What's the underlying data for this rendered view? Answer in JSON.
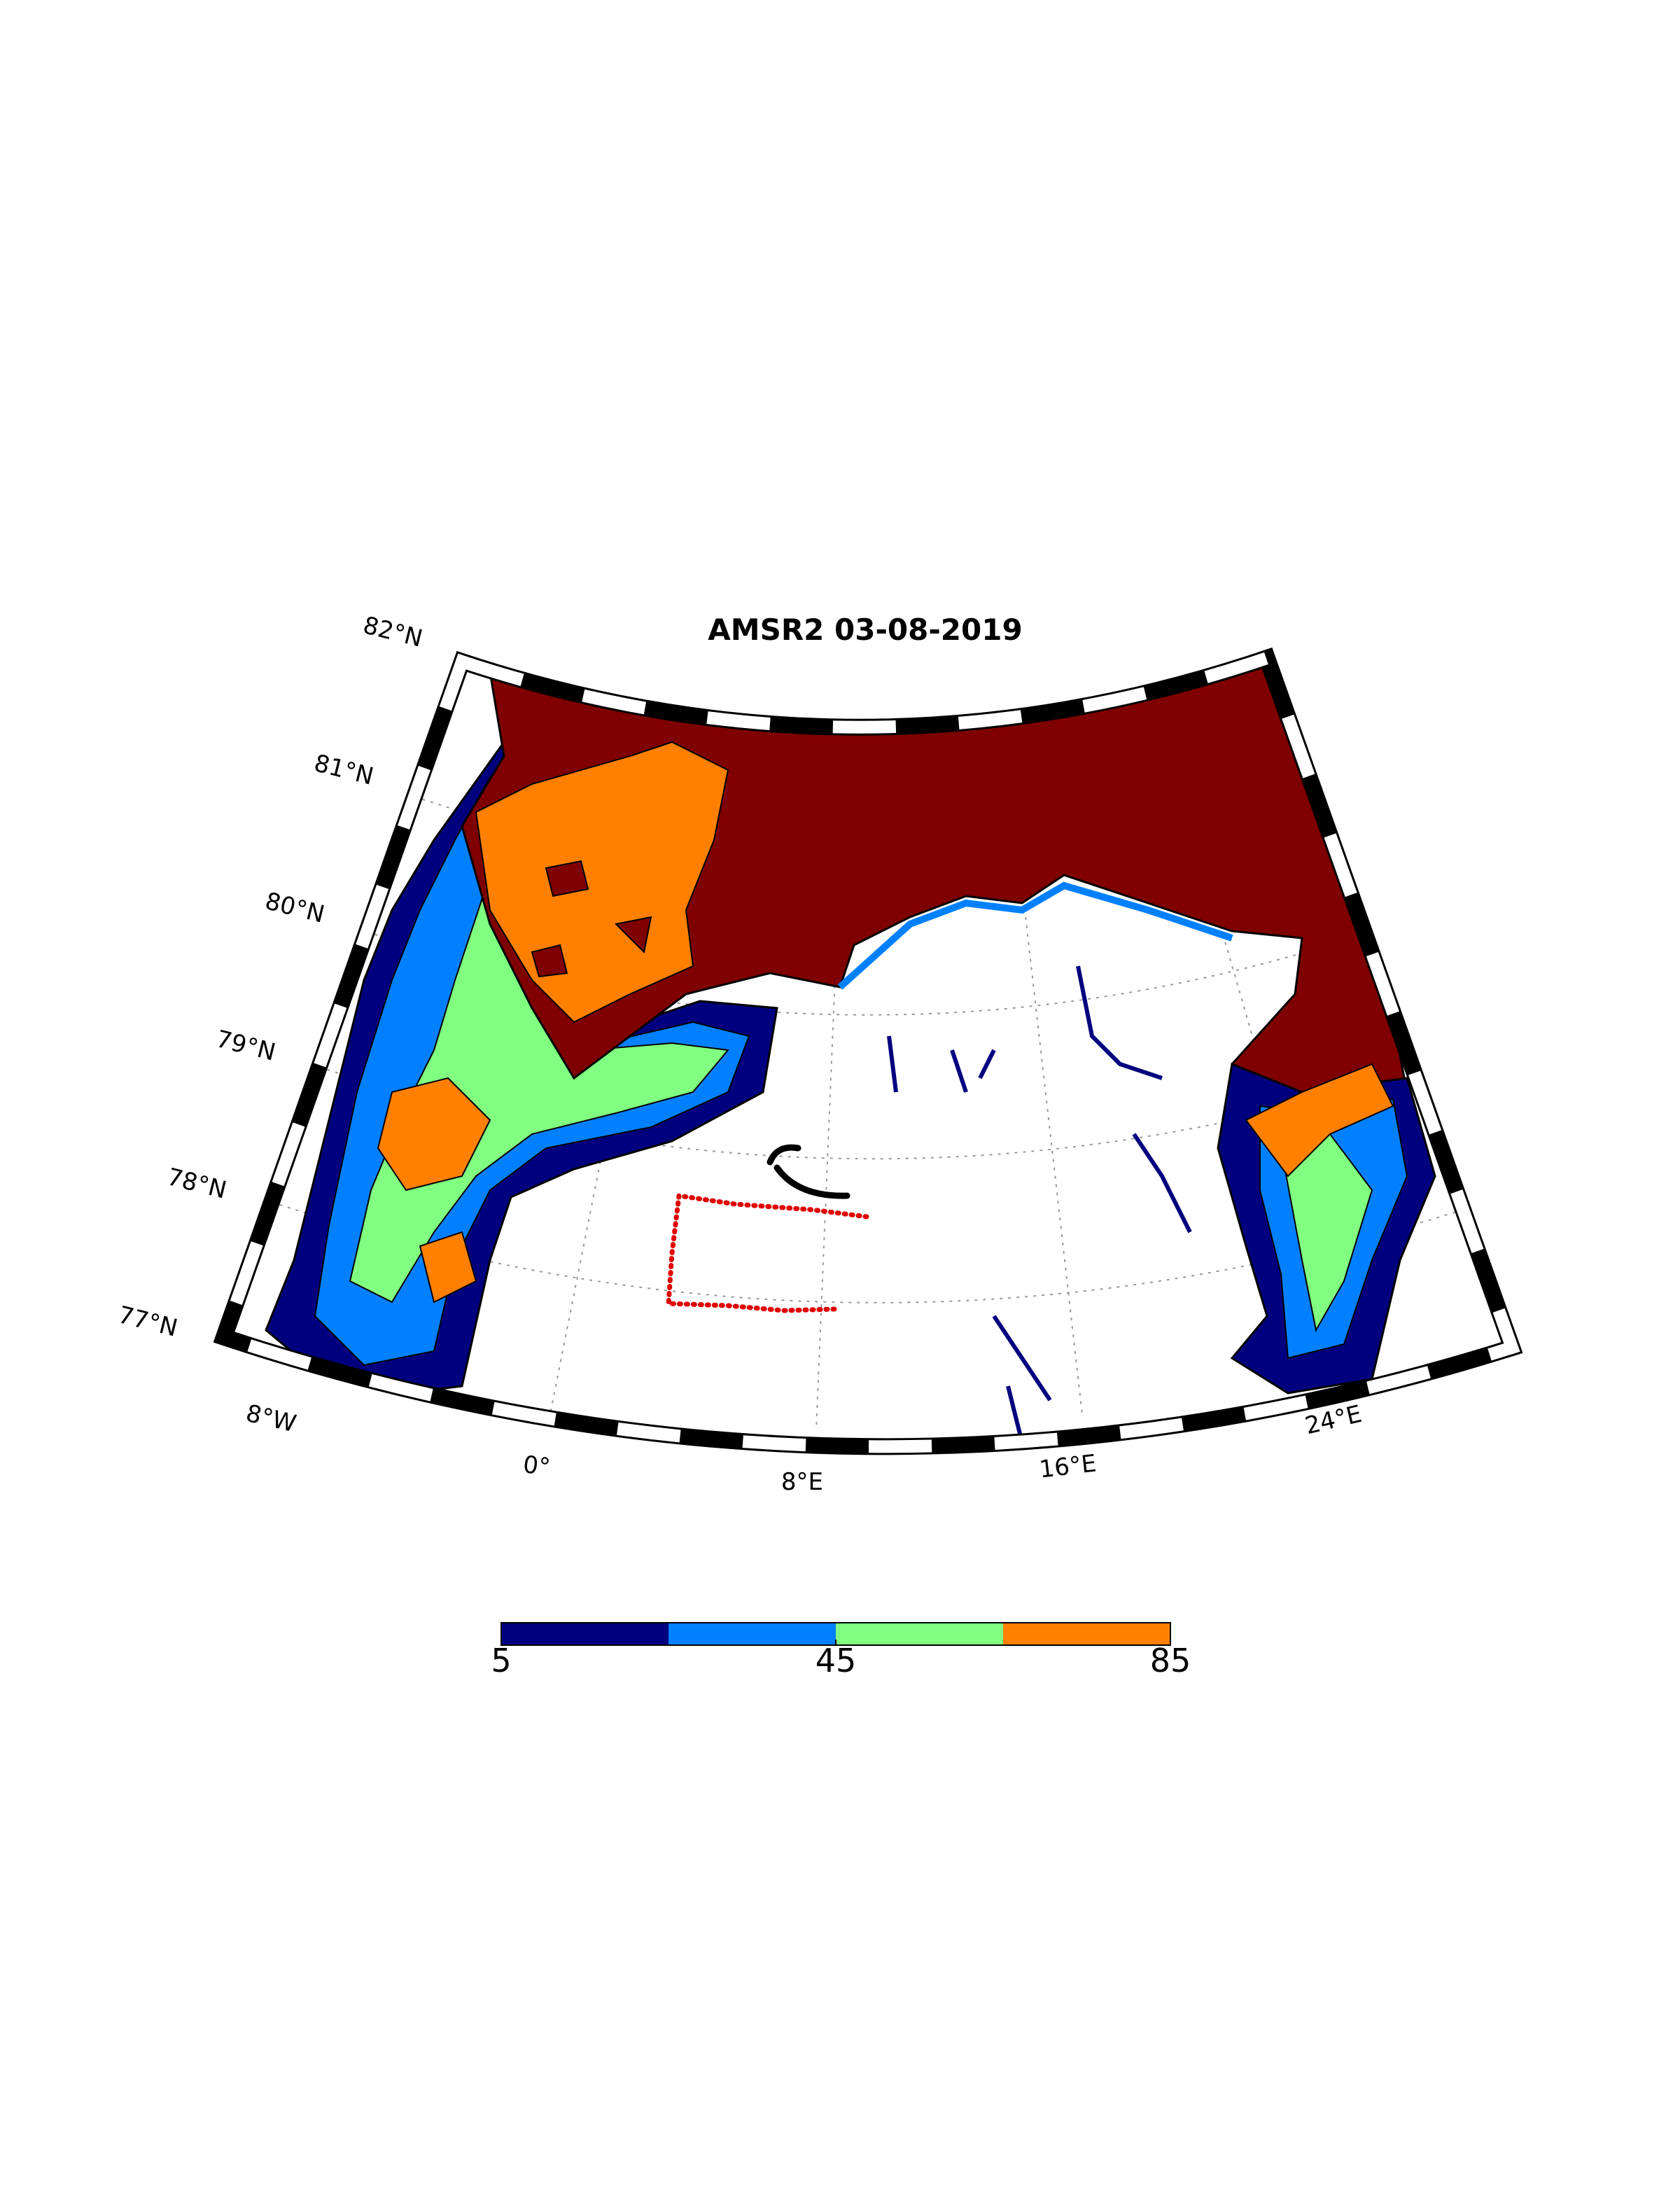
{
  "map": {
    "title": "AMSR2 03-08-2019",
    "parallels": [
      {
        "value": 82,
        "label": "82°N"
      },
      {
        "value": 81,
        "label": "81°N"
      },
      {
        "value": 80,
        "label": "80°N"
      },
      {
        "value": 79,
        "label": "79°N"
      },
      {
        "value": 78,
        "label": "78°N"
      },
      {
        "value": 77,
        "label": "77°N"
      }
    ],
    "meridians": [
      {
        "value": -8,
        "label": "8°W"
      },
      {
        "value": 0,
        "label": "0°"
      },
      {
        "value": 8,
        "label": "8°E"
      },
      {
        "value": 16,
        "label": "16°E"
      },
      {
        "value": 24,
        "label": "24°E"
      }
    ]
  },
  "colorbar": {
    "levels": [
      5,
      25,
      45,
      65,
      85
    ],
    "colors": [
      "#00007f",
      "#0080ff",
      "#80ff80",
      "#ff8000"
    ],
    "ticks": [
      5,
      45,
      85
    ],
    "lim": [
      5,
      85
    ]
  }
}
